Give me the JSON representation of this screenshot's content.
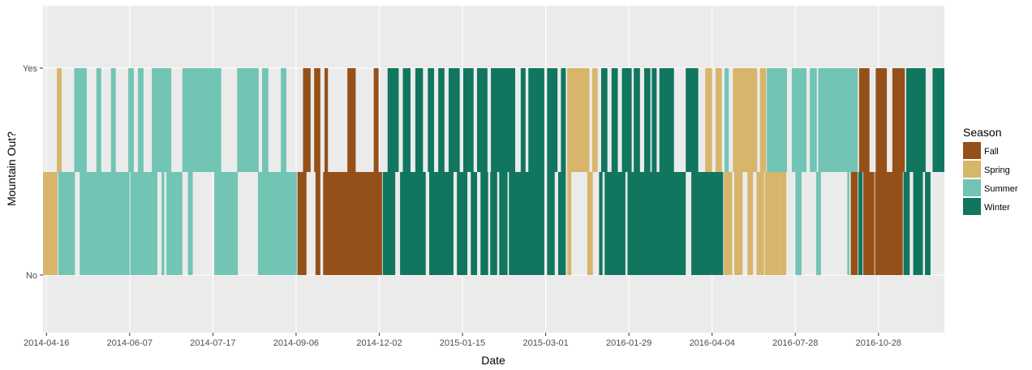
{
  "chart_data": {
    "type": "bar",
    "title": "",
    "xlabel": "Date",
    "ylabel": "Mountain Out?",
    "x_tick_labels": [
      "2014-04-16",
      "2014-06-07",
      "2014-07-17",
      "2014-09-06",
      "2014-12-02",
      "2015-01-15",
      "2015-03-01",
      "2016-01-29",
      "2016-04-04",
      "2016-07-28",
      "2016-10-28"
    ],
    "y_tick_labels": [
      "No",
      "Yes"
    ],
    "x_range_index": [
      -0.25,
      64.75
    ],
    "legend": {
      "title": "Season",
      "placement": "right",
      "entries": [
        {
          "label": "Fall",
          "color": "#955019"
        },
        {
          "label": "Spring",
          "color": "#D7B66C"
        },
        {
          "label": "Summer",
          "color": "#72C4B4"
        },
        {
          "label": "Winter",
          "color": "#10765F"
        }
      ]
    },
    "bands": {
      "Yes": [
        {
          "start": 0.75,
          "end": 1.1,
          "season": "Spring"
        },
        {
          "start": 2.0,
          "end": 2.9,
          "season": "Summer"
        },
        {
          "start": 3.6,
          "end": 3.95,
          "season": "Summer"
        },
        {
          "start": 4.65,
          "end": 5.0,
          "season": "Summer"
        },
        {
          "start": 5.9,
          "end": 6.3,
          "season": "Summer"
        },
        {
          "start": 6.6,
          "end": 7.0,
          "season": "Summer"
        },
        {
          "start": 7.6,
          "end": 8.0,
          "season": "Summer"
        },
        {
          "start": 7.95,
          "end": 9.0,
          "season": "Summer"
        },
        {
          "start": 9.8,
          "end": 12.6,
          "season": "Summer"
        },
        {
          "start": 13.75,
          "end": 15.3,
          "season": "Summer"
        },
        {
          "start": 15.55,
          "end": 16.0,
          "season": "Summer"
        },
        {
          "start": 16.9,
          "end": 17.3,
          "season": "Summer"
        },
        {
          "start": 18.5,
          "end": 19.05,
          "season": "Fall"
        },
        {
          "start": 19.3,
          "end": 19.75,
          "season": "Fall"
        },
        {
          "start": 20.05,
          "end": 20.3,
          "season": "Fall"
        },
        {
          "start": 21.7,
          "end": 22.3,
          "season": "Fall"
        },
        {
          "start": 23.6,
          "end": 23.95,
          "season": "Fall"
        },
        {
          "start": 24.6,
          "end": 25.4,
          "season": "Winter"
        },
        {
          "start": 25.7,
          "end": 26.25,
          "season": "Winter"
        },
        {
          "start": 26.6,
          "end": 27.15,
          "season": "Winter"
        },
        {
          "start": 27.5,
          "end": 27.95,
          "season": "Winter"
        },
        {
          "start": 28.25,
          "end": 28.7,
          "season": "Winter"
        },
        {
          "start": 29.0,
          "end": 29.8,
          "season": "Winter"
        },
        {
          "start": 30.05,
          "end": 30.8,
          "season": "Winter"
        },
        {
          "start": 31.05,
          "end": 31.8,
          "season": "Winter"
        },
        {
          "start": 32.05,
          "end": 33.8,
          "season": "Winter"
        },
        {
          "start": 34.2,
          "end": 34.55,
          "season": "Winter"
        },
        {
          "start": 34.75,
          "end": 35.9,
          "season": "Winter"
        },
        {
          "start": 36.1,
          "end": 36.85,
          "season": "Winter"
        },
        {
          "start": 37.1,
          "end": 37.45,
          "season": "Winter"
        },
        {
          "start": 37.55,
          "end": 39.15,
          "season": "Spring"
        },
        {
          "start": 39.35,
          "end": 39.75,
          "season": "Spring"
        },
        {
          "start": 40.0,
          "end": 40.45,
          "season": "Winter"
        },
        {
          "start": 40.75,
          "end": 41.2,
          "season": "Winter"
        },
        {
          "start": 41.5,
          "end": 42.2,
          "season": "Winter"
        },
        {
          "start": 42.35,
          "end": 42.8,
          "season": "Winter"
        },
        {
          "start": 43.1,
          "end": 43.55,
          "season": "Winter"
        },
        {
          "start": 43.65,
          "end": 44.0,
          "season": "Winter"
        },
        {
          "start": 44.2,
          "end": 45.25,
          "season": "Winter"
        },
        {
          "start": 46.1,
          "end": 47.0,
          "season": "Winter"
        },
        {
          "start": 47.5,
          "end": 48.0,
          "season": "Spring"
        },
        {
          "start": 48.25,
          "end": 48.7,
          "season": "Spring"
        },
        {
          "start": 48.9,
          "end": 49.2,
          "season": "Summer"
        },
        {
          "start": 49.5,
          "end": 51.25,
          "season": "Spring"
        },
        {
          "start": 51.45,
          "end": 51.9,
          "season": "Spring"
        },
        {
          "start": 51.95,
          "end": 53.4,
          "season": "Summer"
        },
        {
          "start": 53.75,
          "end": 54.8,
          "season": "Summer"
        },
        {
          "start": 55.05,
          "end": 55.55,
          "season": "Summer"
        },
        {
          "start": 55.65,
          "end": 58.5,
          "season": "Summer"
        },
        {
          "start": 58.6,
          "end": 59.35,
          "season": "Fall"
        },
        {
          "start": 59.8,
          "end": 60.6,
          "season": "Fall"
        },
        {
          "start": 61.0,
          "end": 61.9,
          "season": "Fall"
        },
        {
          "start": 62.0,
          "end": 63.4,
          "season": "Winter"
        },
        {
          "start": 63.9,
          "end": 64.75,
          "season": "Winter"
        }
      ],
      "No": [
        {
          "start": -0.25,
          "end": 0.8,
          "season": "Spring"
        },
        {
          "start": 0.85,
          "end": 2.05,
          "season": "Summer"
        },
        {
          "start": 2.4,
          "end": 6.0,
          "season": "Summer"
        },
        {
          "start": 6.05,
          "end": 8.0,
          "season": "Summer"
        },
        {
          "start": 8.3,
          "end": 8.5,
          "season": "Summer"
        },
        {
          "start": 8.65,
          "end": 9.8,
          "season": "Summer"
        },
        {
          "start": 10.2,
          "end": 10.55,
          "season": "Summer"
        },
        {
          "start": 12.1,
          "end": 13.8,
          "season": "Summer"
        },
        {
          "start": 15.25,
          "end": 18.05,
          "season": "Summer"
        },
        {
          "start": 18.1,
          "end": 18.75,
          "season": "Fall"
        },
        {
          "start": 19.4,
          "end": 19.75,
          "season": "Fall"
        },
        {
          "start": 19.95,
          "end": 24.2,
          "season": "Fall"
        },
        {
          "start": 24.25,
          "end": 25.15,
          "season": "Winter"
        },
        {
          "start": 25.5,
          "end": 27.35,
          "season": "Winter"
        },
        {
          "start": 27.6,
          "end": 29.35,
          "season": "Winter"
        },
        {
          "start": 29.6,
          "end": 30.35,
          "season": "Winter"
        },
        {
          "start": 30.6,
          "end": 31.05,
          "season": "Winter"
        },
        {
          "start": 31.3,
          "end": 31.85,
          "season": "Winter"
        },
        {
          "start": 32.0,
          "end": 32.5,
          "season": "Winter"
        },
        {
          "start": 32.65,
          "end": 33.25,
          "season": "Winter"
        },
        {
          "start": 33.35,
          "end": 35.9,
          "season": "Winter"
        },
        {
          "start": 36.1,
          "end": 36.65,
          "season": "Winter"
        },
        {
          "start": 36.9,
          "end": 37.45,
          "season": "Winter"
        },
        {
          "start": 37.55,
          "end": 37.85,
          "season": "Spring"
        },
        {
          "start": 39.0,
          "end": 39.4,
          "season": "Spring"
        },
        {
          "start": 39.85,
          "end": 40.1,
          "season": "Winter"
        },
        {
          "start": 40.25,
          "end": 41.75,
          "season": "Winter"
        },
        {
          "start": 41.9,
          "end": 46.1,
          "season": "Winter"
        },
        {
          "start": 46.5,
          "end": 48.8,
          "season": "Winter"
        },
        {
          "start": 48.85,
          "end": 49.45,
          "season": "Spring"
        },
        {
          "start": 49.6,
          "end": 50.2,
          "season": "Spring"
        },
        {
          "start": 50.55,
          "end": 50.95,
          "season": "Spring"
        },
        {
          "start": 51.2,
          "end": 51.75,
          "season": "Spring"
        },
        {
          "start": 51.8,
          "end": 52.95,
          "season": "Spring"
        },
        {
          "start": 52.95,
          "end": 53.35,
          "season": "Spring"
        },
        {
          "start": 54.0,
          "end": 54.45,
          "season": "Summer"
        },
        {
          "start": 55.5,
          "end": 55.85,
          "season": "Summer"
        },
        {
          "start": 57.75,
          "end": 57.9,
          "season": "Summer"
        },
        {
          "start": 58.0,
          "end": 58.5,
          "season": "Fall"
        },
        {
          "start": 58.55,
          "end": 58.85,
          "season": "Winter"
        },
        {
          "start": 58.9,
          "end": 59.7,
          "season": "Fall"
        },
        {
          "start": 59.75,
          "end": 61.75,
          "season": "Fall"
        },
        {
          "start": 61.8,
          "end": 62.25,
          "season": "Winter"
        },
        {
          "start": 62.5,
          "end": 63.2,
          "season": "Winter"
        },
        {
          "start": 63.35,
          "end": 63.75,
          "season": "Winter"
        }
      ]
    }
  }
}
